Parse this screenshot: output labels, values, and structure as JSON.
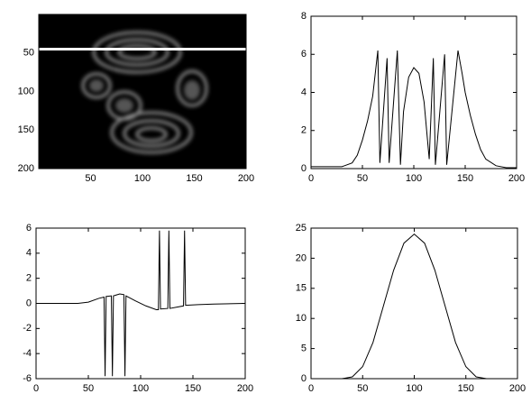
{
  "chart_data": [
    {
      "type": "image",
      "xlim": [
        0,
        200
      ],
      "ylim": [
        0,
        200
      ],
      "xticks": [
        50,
        100,
        150,
        200
      ],
      "yticks": [
        50,
        100,
        150,
        200
      ],
      "line_row": 45,
      "line_color": "#ffffff"
    },
    {
      "type": "line",
      "color": "#000000",
      "xlim": [
        0,
        200
      ],
      "ylim": [
        0,
        8
      ],
      "xticks": [
        0,
        50,
        100,
        150,
        200
      ],
      "yticks": [
        0,
        2,
        4,
        6,
        8
      ],
      "x": [
        0,
        30,
        40,
        45,
        50,
        55,
        60,
        65,
        67,
        74,
        76,
        84,
        87,
        90,
        95,
        100,
        105,
        110,
        115,
        119,
        121,
        130,
        132,
        143,
        147,
        150,
        155,
        160,
        165,
        170,
        180,
        190,
        200
      ],
      "values": [
        0.1,
        0.1,
        0.3,
        0.7,
        1.5,
        2.5,
        3.8,
        6.2,
        0.3,
        5.8,
        0.3,
        6.2,
        0.2,
        3,
        4.8,
        5.3,
        5,
        3.5,
        0.5,
        5.8,
        0.2,
        6,
        0.2,
        6.2,
        5,
        4,
        2.8,
        1.8,
        1,
        0.5,
        0.15,
        0.05,
        0.05
      ]
    },
    {
      "type": "line",
      "color": "#000000",
      "xlim": [
        0,
        200
      ],
      "ylim": [
        -6,
        6
      ],
      "xticks": [
        0,
        50,
        100,
        150,
        200
      ],
      "yticks": [
        -6,
        -4,
        -2,
        0,
        2,
        4,
        6
      ],
      "x": [
        0,
        40,
        50,
        60,
        65,
        66,
        67,
        72,
        73,
        74,
        80,
        84,
        85,
        86,
        95,
        105,
        115,
        117,
        118,
        119,
        126,
        127,
        128,
        141,
        142,
        143,
        155,
        170,
        200
      ],
      "values": [
        0,
        0,
        0.1,
        0.4,
        0.5,
        -5.8,
        0.55,
        0.6,
        -5.8,
        0.6,
        0.75,
        0.7,
        -5.8,
        0.6,
        0.2,
        -0.2,
        -0.5,
        -0.5,
        5.8,
        -0.45,
        -0.4,
        5.8,
        -0.4,
        -0.2,
        5.8,
        -0.15,
        -0.1,
        -0.05,
        0
      ]
    },
    {
      "type": "line",
      "color": "#000000",
      "xlim": [
        0,
        200
      ],
      "ylim": [
        0,
        25
      ],
      "xticks": [
        0,
        50,
        100,
        150,
        200
      ],
      "yticks": [
        0,
        5,
        10,
        15,
        20,
        25
      ],
      "x": [
        0,
        30,
        40,
        50,
        60,
        70,
        80,
        90,
        100,
        110,
        120,
        130,
        140,
        150,
        160,
        170,
        200
      ],
      "values": [
        0,
        0,
        0.3,
        2,
        6,
        12,
        18,
        22.5,
        24,
        22.5,
        18,
        12,
        6,
        2,
        0.3,
        0,
        0
      ]
    }
  ]
}
